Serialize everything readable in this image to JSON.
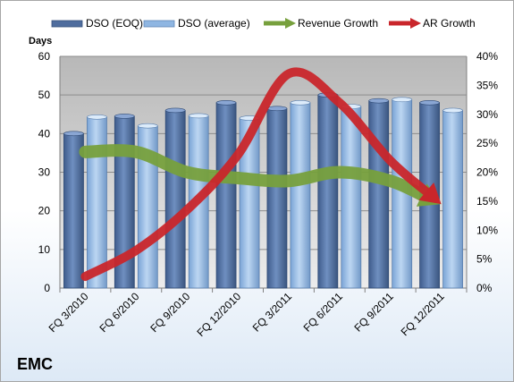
{
  "company": "EMC",
  "chart_data": {
    "type": "bar",
    "ylabel": "Days",
    "categories": [
      "FQ 3/2010",
      "FQ 6/2010",
      "FQ 9/2010",
      "FQ 12/2010",
      "FQ 3/2011",
      "FQ 6/2011",
      "FQ 9/2011",
      "FQ 12/2011"
    ],
    "ylim": [
      0,
      60
    ],
    "yticks": [
      0,
      10,
      20,
      30,
      40,
      50,
      60
    ],
    "y2lim": [
      0,
      40
    ],
    "y2ticks": [
      "0%",
      "5%",
      "10%",
      "15%",
      "20%",
      "25%",
      "30%",
      "35%",
      "40%"
    ],
    "grid": true,
    "legend_position": "top",
    "series": [
      {
        "name": "DSO (EOQ)",
        "kind": "bar",
        "axis": "left",
        "color": "#4f6d9e",
        "values": [
          40,
          44.5,
          46,
          48,
          46.5,
          50,
          48.5,
          48
        ]
      },
      {
        "name": "DSO (average)",
        "kind": "bar",
        "axis": "left",
        "color": "#8fb6e2",
        "values": [
          44.3,
          42,
          44.6,
          44,
          48,
          47,
          48.8,
          46
        ]
      },
      {
        "name": "Revenue Growth",
        "kind": "arrow-line",
        "axis": "right",
        "unit": "%",
        "color": "#77a03d",
        "values": [
          23.5,
          23.5,
          20,
          19,
          18.5,
          20,
          18.5,
          14.5
        ]
      },
      {
        "name": "AR Growth",
        "kind": "arrow-line",
        "axis": "right",
        "unit": "%",
        "color": "#c9262b",
        "values": [
          2,
          6.5,
          13.5,
          23,
          37,
          32,
          22,
          14.5
        ]
      }
    ]
  }
}
